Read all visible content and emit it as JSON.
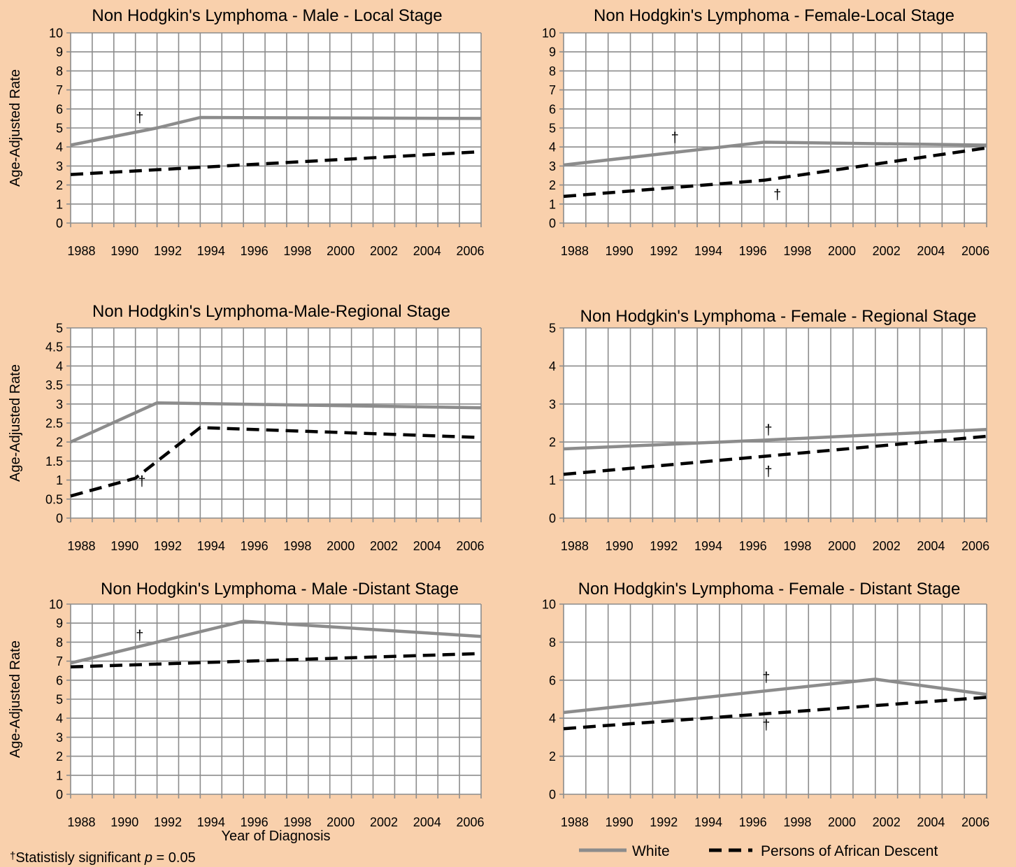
{
  "colors": {
    "background": "#f9d0ac",
    "plot_area": "#ffffff",
    "grid": "#8c8c8c",
    "white_series": "#8c8c8c",
    "african_descent_series": "#000000"
  },
  "legend": {
    "items": [
      {
        "label": "White",
        "style": "solid",
        "color": "#8c8c8c"
      },
      {
        "label": "Persons of African Descent",
        "style": "dashed",
        "color": "#000000"
      }
    ]
  },
  "footnote": {
    "symbol": "†",
    "text": "Statistisly significant ",
    "italic": "p",
    "suffix": " = 0.05"
  },
  "chart_data": [
    {
      "type": "line",
      "title": "Non Hodgkin's Lymphoma - Male - Local Stage",
      "ylabel": "Age-Adjusted Rate",
      "xlabel": "",
      "xlim": [
        1988,
        2007
      ],
      "ylim": [
        0,
        10
      ],
      "yticks": [
        0,
        1,
        2,
        3,
        4,
        5,
        6,
        7,
        8,
        9,
        10
      ],
      "xticks": [
        1988,
        1990,
        1992,
        1994,
        1996,
        1998,
        2000,
        2002,
        2004,
        2006
      ],
      "grid": true,
      "series": [
        {
          "name": "White",
          "x": [
            1988,
            1992,
            1994,
            2007
          ],
          "y": [
            4.1,
            5.0,
            5.55,
            5.5
          ]
        },
        {
          "name": "Persons of African Descent",
          "x": [
            1988,
            2007
          ],
          "y": [
            2.55,
            3.75
          ]
        }
      ],
      "annotations": [
        {
          "text": "†",
          "x": 1991.2,
          "y": 5.3
        }
      ]
    },
    {
      "type": "line",
      "title": "Non Hodgkin's Lymphoma - Female-Local Stage",
      "ylabel": "",
      "xlabel": "",
      "xlim": [
        1988,
        2007
      ],
      "ylim": [
        0,
        10
      ],
      "yticks": [
        0,
        1,
        2,
        3,
        4,
        5,
        6,
        7,
        8,
        9,
        10
      ],
      "xticks": [
        1988,
        1990,
        1992,
        1994,
        1996,
        1998,
        2000,
        2002,
        2004,
        2006
      ],
      "grid": true,
      "series": [
        {
          "name": "White",
          "x": [
            1988,
            1997,
            2007
          ],
          "y": [
            3.05,
            4.25,
            4.1
          ]
        },
        {
          "name": "Persons of African Descent",
          "x": [
            1988,
            1997,
            2007
          ],
          "y": [
            1.4,
            2.25,
            3.95
          ]
        }
      ],
      "annotations": [
        {
          "text": "†",
          "x": 1993.0,
          "y": 4.25
        },
        {
          "text": "†",
          "x": 1997.6,
          "y": 1.25
        }
      ]
    },
    {
      "type": "line",
      "title": "Non Hodgkin's Lymphoma-Male-Regional Stage",
      "ylabel": "Age-Adjusted Rate",
      "xlabel": "",
      "xlim": [
        1988,
        2007
      ],
      "ylim": [
        0,
        5
      ],
      "yticks": [
        0,
        0.5,
        1,
        1.5,
        2,
        2.5,
        3,
        3.5,
        4,
        4.5,
        5
      ],
      "xticks": [
        1988,
        1990,
        1992,
        1994,
        1996,
        1998,
        2000,
        2002,
        2004,
        2006
      ],
      "grid": true,
      "series": [
        {
          "name": "White",
          "x": [
            1988,
            1992,
            2007
          ],
          "y": [
            2.0,
            3.03,
            2.9
          ]
        },
        {
          "name": "Persons of African Descent",
          "x": [
            1988,
            1991,
            1994,
            2007
          ],
          "y": [
            0.58,
            1.05,
            2.38,
            2.12
          ]
        }
      ],
      "annotations": [
        {
          "text": "†",
          "x": 1991.3,
          "y": 0.85
        }
      ]
    },
    {
      "type": "line",
      "title": "Non Hodgkin's Lymphoma - Female - Regional Stage",
      "ylabel": "",
      "xlabel": "",
      "xlim": [
        1988,
        2007
      ],
      "ylim": [
        0,
        5
      ],
      "yticks": [
        0,
        1,
        2,
        3,
        4,
        5
      ],
      "xticks": [
        1988,
        1990,
        1992,
        1994,
        1996,
        1998,
        2000,
        2002,
        2004,
        2006
      ],
      "grid": true,
      "series": [
        {
          "name": "White",
          "x": [
            1988,
            1997,
            2007
          ],
          "y": [
            1.82,
            2.05,
            2.33
          ]
        },
        {
          "name": "Persons of African Descent",
          "x": [
            1988,
            2007
          ],
          "y": [
            1.15,
            2.15
          ]
        }
      ],
      "annotations": [
        {
          "text": "†",
          "x": 1997.2,
          "y": 2.2
        },
        {
          "text": "†",
          "x": 1997.2,
          "y": 1.1
        }
      ]
    },
    {
      "type": "line",
      "title": "Non Hodgkin's Lymphoma - Male -Distant Stage",
      "ylabel": "Age-Adjusted Rate",
      "xlabel": "Year of Diagnosis",
      "xlim": [
        1988,
        2007
      ],
      "ylim": [
        0,
        10
      ],
      "yticks": [
        0,
        1,
        2,
        3,
        4,
        5,
        6,
        7,
        8,
        9,
        10
      ],
      "xticks": [
        1988,
        1990,
        1992,
        1994,
        1996,
        1998,
        2000,
        2002,
        2004,
        2006
      ],
      "grid": true,
      "series": [
        {
          "name": "White",
          "x": [
            1988,
            1996,
            2007
          ],
          "y": [
            6.9,
            9.1,
            8.3
          ]
        },
        {
          "name": "Persons of African Descent",
          "x": [
            1988,
            2007
          ],
          "y": [
            6.7,
            7.4
          ]
        }
      ],
      "annotations": [
        {
          "text": "†",
          "x": 1991.2,
          "y": 8.1
        }
      ]
    },
    {
      "type": "line",
      "title": "Non Hodgkin's Lymphoma - Female - Distant Stage",
      "ylabel": "",
      "xlabel": "",
      "xlim": [
        1988,
        2007
      ],
      "ylim": [
        0,
        10
      ],
      "yticks": [
        0,
        2,
        4,
        6,
        8,
        10
      ],
      "xticks": [
        1988,
        1990,
        1992,
        1994,
        1996,
        1998,
        2000,
        2002,
        2004,
        2006
      ],
      "grid": true,
      "series": [
        {
          "name": "White",
          "x": [
            1988,
            2002,
            2007
          ],
          "y": [
            4.3,
            6.05,
            5.25
          ]
        },
        {
          "name": "Persons of African Descent",
          "x": [
            1988,
            2007
          ],
          "y": [
            3.45,
            5.1
          ]
        }
      ],
      "annotations": [
        {
          "text": "†",
          "x": 1997.1,
          "y": 5.9
        },
        {
          "text": "†",
          "x": 1997.1,
          "y": 3.4
        }
      ]
    }
  ]
}
